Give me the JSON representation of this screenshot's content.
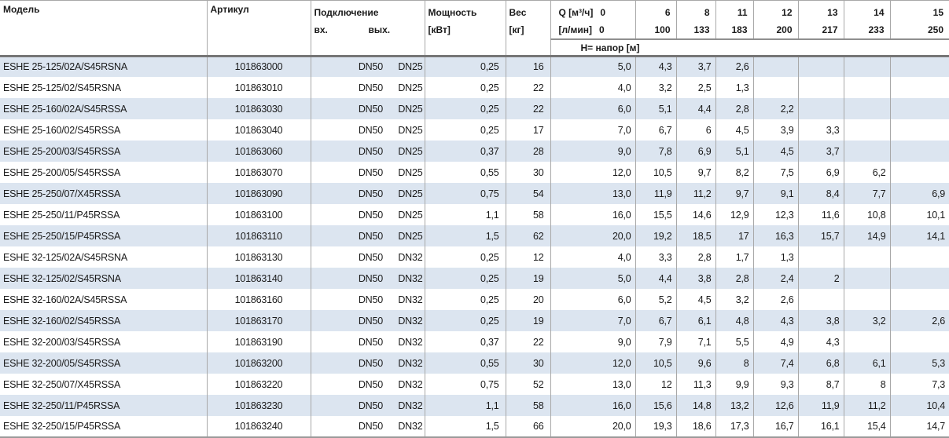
{
  "colors": {
    "stripe_blue": "#dce5f0",
    "row_white": "#ffffff",
    "grid_gray": "#a8a8a8",
    "header_rule_dark": "#767676",
    "q_rule_gray": "#8f8f8f",
    "text": "#1a1a1a"
  },
  "header": {
    "model": "Модель",
    "article": "Артикул",
    "connection": "Подключение",
    "conn_in": "вх.",
    "conn_out": "вых.",
    "power_line1": "Мощность",
    "power_line2": "[кВт]",
    "weight_line1": "Вес",
    "weight_line2": "[кг]",
    "q_unit": "Q [м³/ч]",
    "q_zero": "0",
    "lmin_unit": "[л/мин]",
    "lmin_zero": "0",
    "head_label": "H= напор [м]",
    "q_columns": [
      {
        "q": "6",
        "lmin": "100"
      },
      {
        "q": "8",
        "lmin": "133"
      },
      {
        "q": "11",
        "lmin": "183"
      },
      {
        "q": "12",
        "lmin": "200"
      },
      {
        "q": "13",
        "lmin": "217"
      },
      {
        "q": "14",
        "lmin": "233"
      },
      {
        "q": "15",
        "lmin": "250"
      }
    ]
  },
  "rows": [
    {
      "model": "ESHE 25-125/02A/S45RSNA",
      "article": "101863000",
      "conn_in": "DN50",
      "conn_out": "DN25",
      "power": "0,25",
      "weight": "16",
      "h": [
        "5,0",
        "4,3",
        "3,7",
        "2,6",
        "",
        "",
        "",
        ""
      ]
    },
    {
      "model": "ESHE 25-125/02/S45RSNA",
      "article": "101863010",
      "conn_in": "DN50",
      "conn_out": "DN25",
      "power": "0,25",
      "weight": "22",
      "h": [
        "4,0",
        "3,2",
        "2,5",
        "1,3",
        "",
        "",
        "",
        ""
      ]
    },
    {
      "model": "ESHE 25-160/02A/S45RSSA",
      "article": "101863030",
      "conn_in": "DN50",
      "conn_out": "DN25",
      "power": "0,25",
      "weight": "22",
      "h": [
        "6,0",
        "5,1",
        "4,4",
        "2,8",
        "2,2",
        "",
        "",
        ""
      ]
    },
    {
      "model": "ESHE 25-160/02/S45RSSA",
      "article": "101863040",
      "conn_in": "DN50",
      "conn_out": "DN25",
      "power": "0,25",
      "weight": "17",
      "h": [
        "7,0",
        "6,7",
        "6",
        "4,5",
        "3,9",
        "3,3",
        "",
        ""
      ]
    },
    {
      "model": "ESHE 25-200/03/S45RSSA",
      "article": "101863060",
      "conn_in": "DN50",
      "conn_out": "DN25",
      "power": "0,37",
      "weight": "28",
      "h": [
        "9,0",
        "7,8",
        "6,9",
        "5,1",
        "4,5",
        "3,7",
        "",
        ""
      ]
    },
    {
      "model": "ESHE 25-200/05/S45RSSA",
      "article": "101863070",
      "conn_in": "DN50",
      "conn_out": "DN25",
      "power": "0,55",
      "weight": "30",
      "h": [
        "12,0",
        "10,5",
        "9,7",
        "8,2",
        "7,5",
        "6,9",
        "6,2",
        ""
      ]
    },
    {
      "model": "ESHE 25-250/07/X45RSSA",
      "article": "101863090",
      "conn_in": "DN50",
      "conn_out": "DN25",
      "power": "0,75",
      "weight": "54",
      "h": [
        "13,0",
        "11,9",
        "11,2",
        "9,7",
        "9,1",
        "8,4",
        "7,7",
        "6,9"
      ]
    },
    {
      "model": "ESHE 25-250/11/P45RSSA",
      "article": "101863100",
      "conn_in": "DN50",
      "conn_out": "DN25",
      "power": "1,1",
      "weight": "58",
      "h": [
        "16,0",
        "15,5",
        "14,6",
        "12,9",
        "12,3",
        "11,6",
        "10,8",
        "10,1"
      ]
    },
    {
      "model": "ESHE 25-250/15/P45RSSA",
      "article": "101863110",
      "conn_in": "DN50",
      "conn_out": "DN25",
      "power": "1,5",
      "weight": "62",
      "h": [
        "20,0",
        "19,2",
        "18,5",
        "17",
        "16,3",
        "15,7",
        "14,9",
        "14,1"
      ]
    },
    {
      "model": "ESHE 32-125/02A/S45RSNA",
      "article": "101863130",
      "conn_in": "DN50",
      "conn_out": "DN32",
      "power": "0,25",
      "weight": "12",
      "h": [
        "4,0",
        "3,3",
        "2,8",
        "1,7",
        "1,3",
        "",
        "",
        ""
      ]
    },
    {
      "model": "ESHE 32-125/02/S45RSNA",
      "article": "101863140",
      "conn_in": "DN50",
      "conn_out": "DN32",
      "power": "0,25",
      "weight": "19",
      "h": [
        "5,0",
        "4,4",
        "3,8",
        "2,8",
        "2,4",
        "2",
        "",
        ""
      ]
    },
    {
      "model": "ESHE 32-160/02A/S45RSSA",
      "article": "101863160",
      "conn_in": "DN50",
      "conn_out": "DN32",
      "power": "0,25",
      "weight": "20",
      "h": [
        "6,0",
        "5,2",
        "4,5",
        "3,2",
        "2,6",
        "",
        "",
        ""
      ]
    },
    {
      "model": "ESHE 32-160/02/S45RSSA",
      "article": "101863170",
      "conn_in": "DN50",
      "conn_out": "DN32",
      "power": "0,25",
      "weight": "19",
      "h": [
        "7,0",
        "6,7",
        "6,1",
        "4,8",
        "4,3",
        "3,8",
        "3,2",
        "2,6"
      ]
    },
    {
      "model": "ESHE 32-200/03/S45RSSA",
      "article": "101863190",
      "conn_in": "DN50",
      "conn_out": "DN32",
      "power": "0,37",
      "weight": "22",
      "h": [
        "9,0",
        "7,9",
        "7,1",
        "5,5",
        "4,9",
        "4,3",
        "",
        ""
      ]
    },
    {
      "model": "ESHE 32-200/05/S45RSSA",
      "article": "101863200",
      "conn_in": "DN50",
      "conn_out": "DN32",
      "power": "0,55",
      "weight": "30",
      "h": [
        "12,0",
        "10,5",
        "9,6",
        "8",
        "7,4",
        "6,8",
        "6,1",
        "5,3"
      ]
    },
    {
      "model": "ESHE 32-250/07/X45RSSA",
      "article": "101863220",
      "conn_in": "DN50",
      "conn_out": "DN32",
      "power": "0,75",
      "weight": "52",
      "h": [
        "13,0",
        "12",
        "11,3",
        "9,9",
        "9,3",
        "8,7",
        "8",
        "7,3"
      ]
    },
    {
      "model": "ESHE 32-250/11/P45RSSA",
      "article": "101863230",
      "conn_in": "DN50",
      "conn_out": "DN32",
      "power": "1,1",
      "weight": "58",
      "h": [
        "16,0",
        "15,6",
        "14,8",
        "13,2",
        "12,6",
        "11,9",
        "11,2",
        "10,4"
      ]
    },
    {
      "model": "ESHE 32-250/15/P45RSSA",
      "article": "101863240",
      "conn_in": "DN50",
      "conn_out": "DN32",
      "power": "1,5",
      "weight": "66",
      "h": [
        "20,0",
        "19,3",
        "18,6",
        "17,3",
        "16,7",
        "16,1",
        "15,4",
        "14,7"
      ]
    }
  ]
}
